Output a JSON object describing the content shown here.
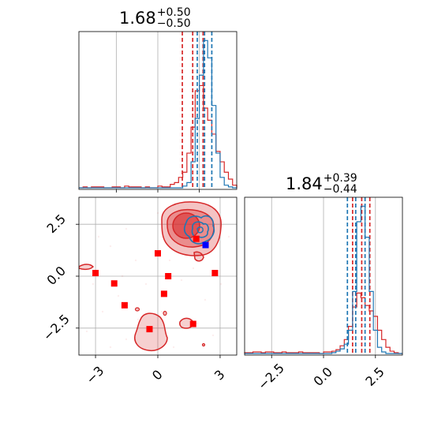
{
  "chart_data": {
    "type": "corner",
    "colors": {
      "series_a": "#d62728",
      "series_b": "#1f77b4",
      "markers": "#ff0000",
      "highlight": "#0000ff",
      "grid": "#b0b0b0"
    },
    "panels": [
      {
        "id": "hist_x",
        "title": {
          "value": "1.68",
          "plus": "+0.50",
          "minus": "−0.50"
        },
        "xlim": [
          -3.8,
          3.8
        ],
        "grid": true,
        "series": [
          {
            "color": "#d62728",
            "bins": [
              -3.8,
              -3.6,
              -3.4,
              -3.2,
              -3.0,
              -2.8,
              -2.6,
              -2.4,
              -2.2,
              -2.0,
              -1.8,
              -1.6,
              -1.4,
              -1.2,
              -1.0,
              -0.8,
              -0.6,
              -0.4,
              -0.2,
              0.0,
              0.2,
              0.4,
              0.6,
              0.8,
              1.0,
              1.2,
              1.4,
              1.6,
              1.8,
              2.0,
              2.2,
              2.4,
              2.6,
              2.8,
              3.0,
              3.2,
              3.4,
              3.6,
              3.8
            ],
            "counts": [
              0,
              1,
              0,
              1,
              1,
              1,
              0,
              0,
              1,
              1,
              0,
              2,
              1,
              1,
              1,
              0,
              1,
              0,
              0,
              2,
              1,
              1,
              4,
              6,
              12,
              18,
              40,
              70,
              112,
              118,
              92,
              78,
              62,
              42,
              30,
              18,
              10,
              3
            ],
            "quantile_lines": [
              1.18,
              1.68,
              2.18
            ]
          },
          {
            "color": "#1f77b4",
            "bins": [
              -3.8,
              -3.6,
              -3.4,
              -3.2,
              -3.0,
              -2.8,
              -2.6,
              -2.4,
              -2.2,
              -2.0,
              -1.8,
              -1.6,
              -1.4,
              -1.2,
              -1.0,
              -0.8,
              -0.6,
              -0.4,
              -0.2,
              0.0,
              0.2,
              0.4,
              0.6,
              0.8,
              1.0,
              1.2,
              1.4,
              1.6,
              1.8,
              2.0,
              2.2,
              2.4,
              2.6,
              2.8,
              3.0,
              3.2,
              3.4,
              3.6,
              3.8
            ],
            "counts": [
              0,
              0,
              0,
              0,
              0,
              0,
              0,
              0,
              0,
              0,
              0,
              0,
              0,
              0,
              0,
              0,
              0,
              0,
              0,
              0,
              0,
              0,
              0,
              0,
              0,
              2,
              6,
              30,
              80,
              130,
              170,
              150,
              95,
              40,
              12,
              3,
              1,
              0
            ],
            "quantile_lines": [
              1.9,
              2.25,
              2.6
            ]
          }
        ]
      },
      {
        "id": "hist_y",
        "title": {
          "value": "1.84",
          "plus": "+0.39",
          "minus": "−0.44"
        },
        "xlim": [
          -3.8,
          3.8
        ],
        "xticks": [
          -2.5,
          0.0,
          2.5
        ],
        "xtick_labels": [
          "−2.5",
          "0.0",
          "2.5"
        ],
        "grid": true,
        "series": [
          {
            "color": "#d62728",
            "bins": [
              -3.8,
              -3.6,
              -3.4,
              -3.2,
              -3.0,
              -2.8,
              -2.6,
              -2.4,
              -2.2,
              -2.0,
              -1.8,
              -1.6,
              -1.4,
              -1.2,
              -1.0,
              -0.8,
              -0.6,
              -0.4,
              -0.2,
              0.0,
              0.2,
              0.4,
              0.6,
              0.8,
              1.0,
              1.2,
              1.4,
              1.6,
              1.8,
              2.0,
              2.2,
              2.4,
              2.6,
              2.8,
              3.0,
              3.2,
              3.4,
              3.6,
              3.8
            ],
            "counts": [
              1,
              1,
              2,
              2,
              1,
              2,
              2,
              1,
              1,
              2,
              1,
              1,
              1,
              2,
              1,
              1,
              1,
              1,
              0,
              2,
              2,
              3,
              5,
              10,
              18,
              35,
              60,
              78,
              72,
              62,
              55,
              48,
              30,
              18,
              8,
              3,
              1,
              0
            ],
            "quantile_lines": [
              1.4,
              1.84,
              2.23
            ]
          },
          {
            "color": "#1f77b4",
            "bins": [
              -3.8,
              -3.6,
              -3.4,
              -3.2,
              -3.0,
              -2.8,
              -2.6,
              -2.4,
              -2.2,
              -2.0,
              -1.8,
              -1.6,
              -1.4,
              -1.2,
              -1.0,
              -0.8,
              -0.6,
              -0.4,
              -0.2,
              0.0,
              0.2,
              0.4,
              0.6,
              0.8,
              1.0,
              1.2,
              1.4,
              1.6,
              1.8,
              2.0,
              2.2,
              2.4,
              2.6,
              2.8,
              3.0,
              3.2,
              3.4,
              3.6,
              3.8
            ],
            "counts": [
              0,
              0,
              0,
              0,
              0,
              0,
              0,
              0,
              0,
              0,
              0,
              0,
              0,
              0,
              0,
              0,
              0,
              0,
              0,
              0,
              0,
              1,
              3,
              6,
              12,
              30,
              80,
              170,
              190,
              150,
              80,
              30,
              8,
              2,
              0,
              0,
              0,
              0
            ],
            "quantile_lines": [
              1.15,
              1.55,
              2.0
            ]
          }
        ]
      },
      {
        "id": "scatter_2d",
        "xlim": [
          -3.8,
          3.8
        ],
        "ylim": [
          -3.8,
          3.8
        ],
        "xticks": [
          -3,
          0,
          3
        ],
        "xtick_labels": [
          "−3",
          "0",
          "3"
        ],
        "yticks": [
          -2.5,
          0.0,
          2.5
        ],
        "ytick_labels": [
          "−2.5",
          "0.0",
          "2.5"
        ],
        "grid": true,
        "markers": [
          {
            "x": -3.0,
            "y": 0.15
          },
          {
            "x": -2.1,
            "y": -0.35
          },
          {
            "x": -1.6,
            "y": -1.4
          },
          {
            "x": -0.4,
            "y": -2.55
          },
          {
            "x": 0.0,
            "y": 1.1
          },
          {
            "x": 0.3,
            "y": -0.85
          },
          {
            "x": 0.5,
            "y": 0.0
          },
          {
            "x": 1.7,
            "y": -2.3
          },
          {
            "x": 1.85,
            "y": 1.8
          },
          {
            "x": 2.75,
            "y": 0.15
          }
        ],
        "highlight": {
          "x": 2.3,
          "y": 1.5
        }
      }
    ]
  }
}
